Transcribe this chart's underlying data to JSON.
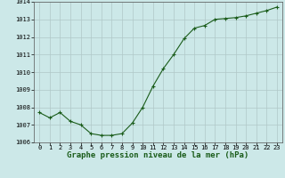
{
  "x": [
    0,
    1,
    2,
    3,
    4,
    5,
    6,
    7,
    8,
    9,
    10,
    11,
    12,
    13,
    14,
    15,
    16,
    17,
    18,
    19,
    20,
    21,
    22,
    23
  ],
  "y": [
    1007.7,
    1007.4,
    1007.7,
    1007.2,
    1007.0,
    1006.5,
    1006.4,
    1006.4,
    1006.5,
    1007.1,
    1008.0,
    1009.2,
    1010.2,
    1011.0,
    1011.9,
    1012.5,
    1012.65,
    1013.0,
    1013.05,
    1013.1,
    1013.2,
    1013.35,
    1013.5,
    1013.7
  ],
  "line_color": "#1a5c1a",
  "marker_color": "#1a5c1a",
  "bg_color": "#cce8e8",
  "grid_color": "#b0c8c8",
  "ylim": [
    1006.0,
    1014.0
  ],
  "yticks": [
    1006,
    1007,
    1008,
    1009,
    1010,
    1011,
    1012,
    1013,
    1014
  ],
  "xticks": [
    0,
    1,
    2,
    3,
    4,
    5,
    6,
    7,
    8,
    9,
    10,
    11,
    12,
    13,
    14,
    15,
    16,
    17,
    18,
    19,
    20,
    21,
    22,
    23
  ],
  "xlabel": "Graphe pression niveau de la mer (hPa)",
  "xlabel_fontsize": 6.5,
  "tick_fontsize": 5.0,
  "marker_size": 3.0,
  "line_width": 0.8
}
